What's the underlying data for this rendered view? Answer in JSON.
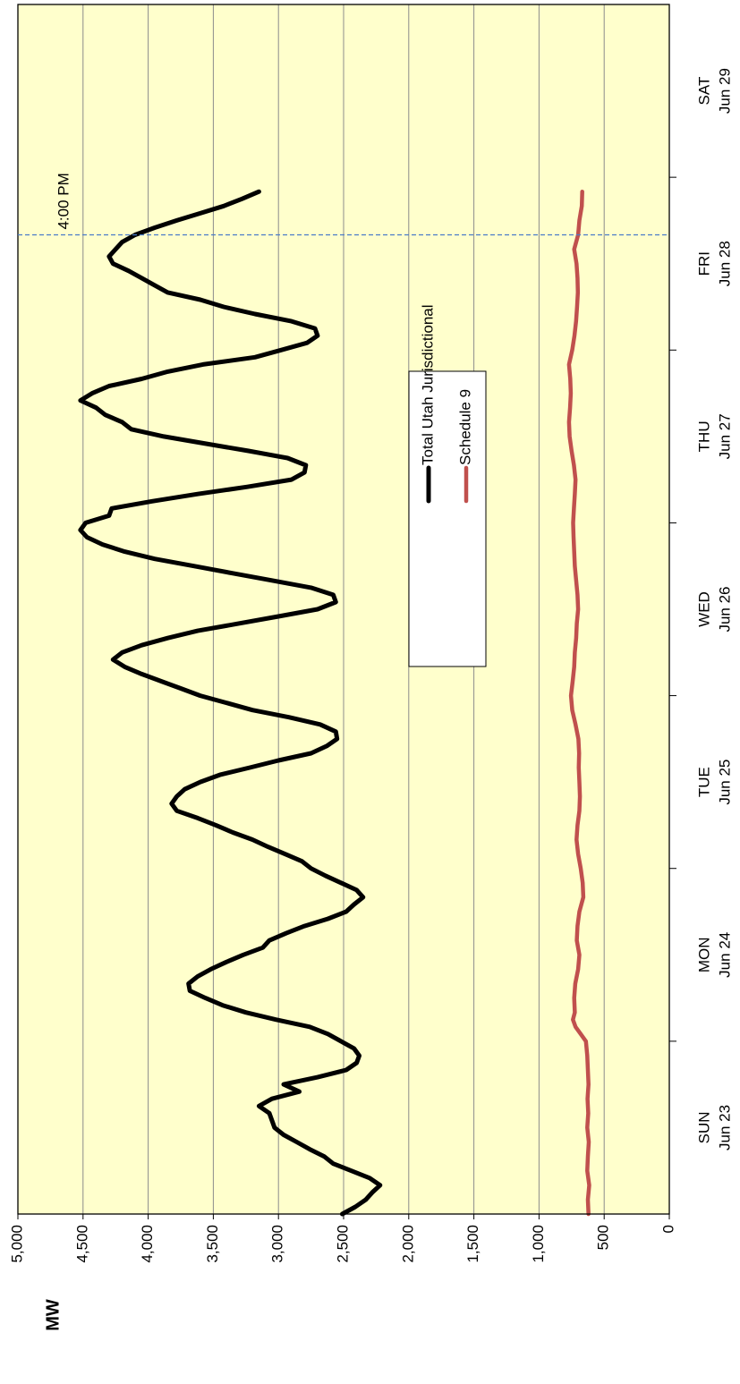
{
  "chart_data": {
    "type": "line",
    "orientation": "rotated 90 degrees clockwise",
    "title": "",
    "xlabel": "",
    "ylabel": "MW",
    "ylim": [
      0,
      5000
    ],
    "yticks": [
      {
        "value": 0,
        "label": "0"
      },
      {
        "value": 500,
        "label": "500"
      },
      {
        "value": 1000,
        "label": "1,000"
      },
      {
        "value": 1500,
        "label": "1,500"
      },
      {
        "value": 2000,
        "label": "2,000"
      },
      {
        "value": 2500,
        "label": "2,500"
      },
      {
        "value": 3000,
        "label": "3,000"
      },
      {
        "value": 3500,
        "label": "3,500"
      },
      {
        "value": 4000,
        "label": "4,000"
      },
      {
        "value": 4500,
        "label": "4,500"
      },
      {
        "value": 5000,
        "label": "5,000"
      }
    ],
    "xlim": [
      0,
      168
    ],
    "days": [
      {
        "start_hour": 0,
        "day": "SUN",
        "date": "Jun 23"
      },
      {
        "start_hour": 24,
        "day": "MON",
        "date": "Jun 24"
      },
      {
        "start_hour": 48,
        "day": "TUE",
        "date": "Jun 25"
      },
      {
        "start_hour": 72,
        "day": "WED",
        "date": "Jun 26"
      },
      {
        "start_hour": 96,
        "day": "THU",
        "date": "Jun 27"
      },
      {
        "start_hour": 120,
        "day": "FRI",
        "date": "Jun 28"
      },
      {
        "start_hour": 144,
        "day": "SAT",
        "date": "Jun 29"
      }
    ],
    "grid": "horizontal",
    "legend_position": "center",
    "annotation": {
      "text": "4:00 PM",
      "hour": 136
    },
    "series": [
      {
        "name": "Total Utah Jurisdictional",
        "color": "#000000",
        "points": [
          [
            0,
            2510
          ],
          [
            1,
            2410
          ],
          [
            2,
            2330
          ],
          [
            3,
            2280
          ],
          [
            4,
            2220
          ],
          [
            5,
            2300
          ],
          [
            6,
            2440
          ],
          [
            7,
            2580
          ],
          [
            8,
            2650
          ],
          [
            9,
            2760
          ],
          [
            10,
            2860
          ],
          [
            11,
            2960
          ],
          [
            12,
            3030
          ],
          [
            13,
            3050
          ],
          [
            14,
            3070
          ],
          [
            15,
            3150
          ],
          [
            16,
            3050
          ],
          [
            17,
            2840
          ],
          [
            18,
            2960
          ],
          [
            19,
            2700
          ],
          [
            20,
            2480
          ],
          [
            21,
            2400
          ],
          [
            22,
            2380
          ],
          [
            23,
            2420
          ],
          [
            24,
            2520
          ],
          [
            25,
            2620
          ],
          [
            26,
            2760
          ],
          [
            27,
            3020
          ],
          [
            28,
            3250
          ],
          [
            29,
            3430
          ],
          [
            30,
            3560
          ],
          [
            31,
            3680
          ],
          [
            32,
            3690
          ],
          [
            33,
            3620
          ],
          [
            34,
            3520
          ],
          [
            35,
            3400
          ],
          [
            36,
            3270
          ],
          [
            37,
            3120
          ],
          [
            38,
            3070
          ],
          [
            39,
            2940
          ],
          [
            40,
            2800
          ],
          [
            41,
            2620
          ],
          [
            42,
            2480
          ],
          [
            43,
            2420
          ],
          [
            44,
            2350
          ],
          [
            45,
            2400
          ],
          [
            46,
            2520
          ],
          [
            47,
            2640
          ],
          [
            48,
            2750
          ],
          [
            49,
            2820
          ],
          [
            50,
            2950
          ],
          [
            51,
            3080
          ],
          [
            52,
            3200
          ],
          [
            53,
            3350
          ],
          [
            54,
            3480
          ],
          [
            55,
            3620
          ],
          [
            56,
            3780
          ],
          [
            57,
            3820
          ],
          [
            58,
            3780
          ],
          [
            59,
            3720
          ],
          [
            60,
            3600
          ],
          [
            61,
            3450
          ],
          [
            62,
            3220
          ],
          [
            63,
            3000
          ],
          [
            64,
            2750
          ],
          [
            65,
            2630
          ],
          [
            66,
            2550
          ],
          [
            67,
            2560
          ],
          [
            68,
            2680
          ],
          [
            69,
            2920
          ],
          [
            70,
            3200
          ],
          [
            71,
            3400
          ],
          [
            72,
            3600
          ],
          [
            73,
            3750
          ],
          [
            74,
            3900
          ],
          [
            75,
            4050
          ],
          [
            76,
            4180
          ],
          [
            77,
            4270
          ],
          [
            78,
            4200
          ],
          [
            79,
            4050
          ],
          [
            80,
            3850
          ],
          [
            81,
            3620
          ],
          [
            82,
            3310
          ],
          [
            83,
            3000
          ],
          [
            84,
            2700
          ],
          [
            85,
            2560
          ],
          [
            86,
            2580
          ],
          [
            87,
            2750
          ],
          [
            88,
            3050
          ],
          [
            89,
            3350
          ],
          [
            90,
            3650
          ],
          [
            91,
            3950
          ],
          [
            92,
            4180
          ],
          [
            93,
            4350
          ],
          [
            94,
            4470
          ],
          [
            95,
            4520
          ],
          [
            96,
            4480
          ],
          [
            97,
            4300
          ],
          [
            98,
            4280
          ],
          [
            99,
            3970
          ],
          [
            100,
            3620
          ],
          [
            101,
            3240
          ],
          [
            102,
            2900
          ],
          [
            103,
            2800
          ],
          [
            104,
            2790
          ],
          [
            105,
            2930
          ],
          [
            106,
            3230
          ],
          [
            107,
            3560
          ],
          [
            108,
            3880
          ],
          [
            109,
            4130
          ],
          [
            110,
            4200
          ],
          [
            111,
            4330
          ],
          [
            112,
            4400
          ],
          [
            113,
            4520
          ],
          [
            114,
            4430
          ],
          [
            115,
            4300
          ],
          [
            116,
            4050
          ],
          [
            117,
            3850
          ],
          [
            118,
            3580
          ],
          [
            119,
            3180
          ],
          [
            120,
            2980
          ],
          [
            121,
            2780
          ],
          [
            122,
            2700
          ],
          [
            123,
            2720
          ],
          [
            124,
            2900
          ],
          [
            125,
            3180
          ],
          [
            126,
            3420
          ],
          [
            127,
            3600
          ],
          [
            128,
            3850
          ],
          [
            129,
            3950
          ],
          [
            130,
            4050
          ],
          [
            131,
            4150
          ],
          [
            132,
            4270
          ],
          [
            133,
            4300
          ],
          [
            134,
            4250
          ],
          [
            135,
            4200
          ],
          [
            136,
            4100
          ],
          [
            137,
            3950
          ],
          [
            138,
            3780
          ],
          [
            139,
            3600
          ],
          [
            140,
            3420
          ],
          [
            141,
            3280
          ],
          [
            142,
            3150
          ]
        ]
      },
      {
        "name": "Schedule 9",
        "color": "#C0504D",
        "points": [
          [
            0,
            620
          ],
          [
            2,
            625
          ],
          [
            4,
            615
          ],
          [
            6,
            630
          ],
          [
            8,
            625
          ],
          [
            10,
            618
          ],
          [
            12,
            630
          ],
          [
            14,
            622
          ],
          [
            16,
            628
          ],
          [
            18,
            620
          ],
          [
            20,
            625
          ],
          [
            22,
            630
          ],
          [
            24,
            640
          ],
          [
            25,
            680
          ],
          [
            26,
            720
          ],
          [
            27,
            740
          ],
          [
            28,
            725
          ],
          [
            30,
            730
          ],
          [
            32,
            722
          ],
          [
            34,
            700
          ],
          [
            36,
            690
          ],
          [
            38,
            710
          ],
          [
            40,
            705
          ],
          [
            42,
            690
          ],
          [
            44,
            660
          ],
          [
            46,
            665
          ],
          [
            48,
            680
          ],
          [
            50,
            700
          ],
          [
            52,
            712
          ],
          [
            54,
            705
          ],
          [
            56,
            690
          ],
          [
            58,
            686
          ],
          [
            60,
            690
          ],
          [
            62,
            695
          ],
          [
            64,
            692
          ],
          [
            66,
            698
          ],
          [
            68,
            720
          ],
          [
            70,
            745
          ],
          [
            72,
            755
          ],
          [
            74,
            742
          ],
          [
            76,
            730
          ],
          [
            78,
            725
          ],
          [
            80,
            715
          ],
          [
            82,
            710
          ],
          [
            84,
            700
          ],
          [
            86,
            705
          ],
          [
            88,
            715
          ],
          [
            90,
            725
          ],
          [
            92,
            730
          ],
          [
            94,
            735
          ],
          [
            96,
            738
          ],
          [
            98,
            732
          ],
          [
            100,
            725
          ],
          [
            102,
            720
          ],
          [
            104,
            732
          ],
          [
            106,
            750
          ],
          [
            108,
            765
          ],
          [
            110,
            770
          ],
          [
            112,
            762
          ],
          [
            114,
            756
          ],
          [
            116,
            760
          ],
          [
            118,
            770
          ],
          [
            120,
            745
          ],
          [
            122,
            728
          ],
          [
            124,
            716
          ],
          [
            126,
            708
          ],
          [
            128,
            702
          ],
          [
            130,
            705
          ],
          [
            132,
            712
          ],
          [
            134,
            730
          ],
          [
            136,
            700
          ],
          [
            138,
            690
          ],
          [
            140,
            672
          ],
          [
            142,
            668
          ]
        ]
      }
    ]
  }
}
